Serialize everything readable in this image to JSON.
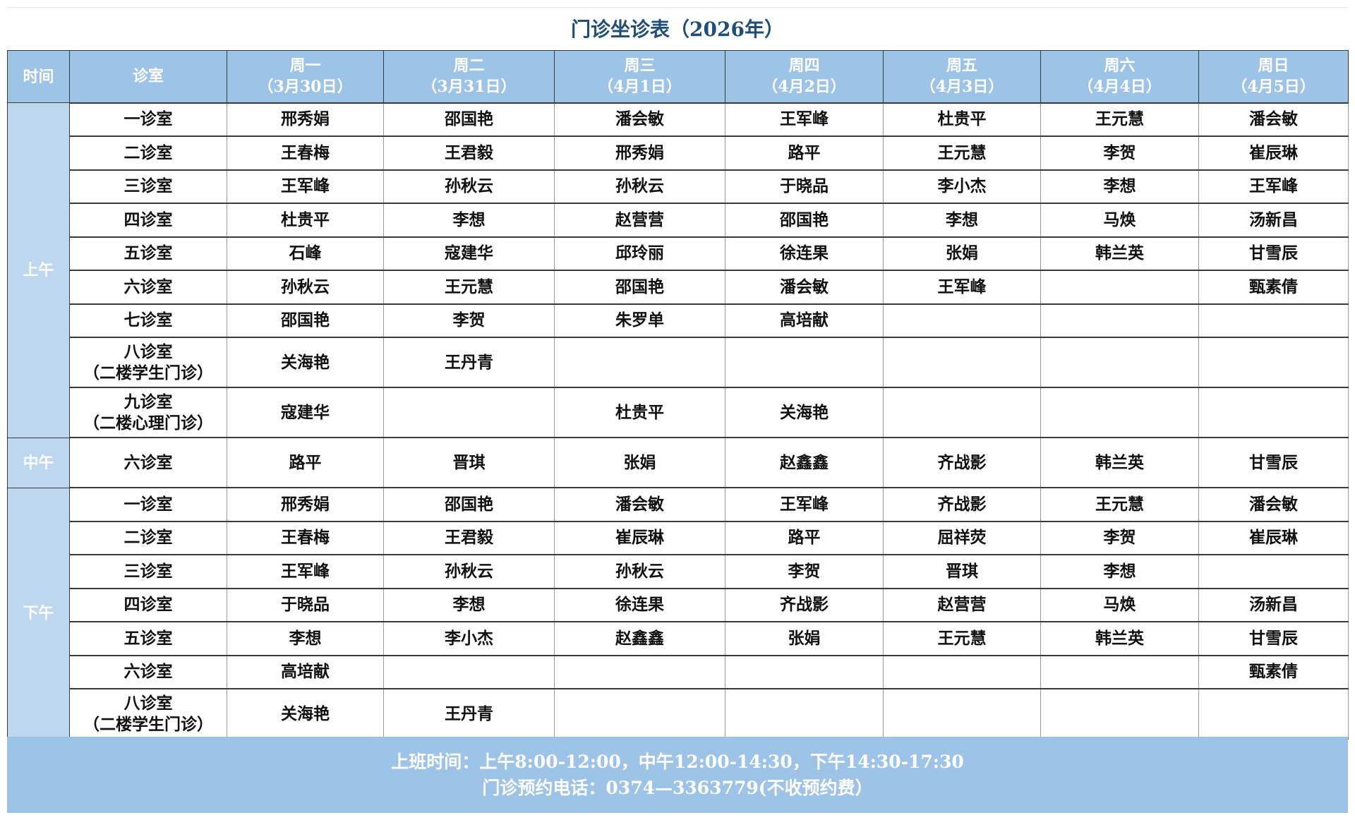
{
  "title": "门诊坐诊表（2026年）",
  "header": {
    "time": "时间",
    "room": "诊室",
    "days": [
      {
        "day": "周一",
        "date": "（3月30日）"
      },
      {
        "day": "周二",
        "date": "（3月31日）"
      },
      {
        "day": "周三",
        "date": "（4月1日）"
      },
      {
        "day": "周四",
        "date": "（4月2日）"
      },
      {
        "day": "周五",
        "date": "（4月3日）"
      },
      {
        "day": "周六",
        "date": "（4月4日）"
      },
      {
        "day": "周日",
        "date": "（4月5日）"
      }
    ]
  },
  "periods": [
    {
      "label": "上午",
      "rows": [
        {
          "room": [
            "一诊室"
          ],
          "doctors": [
            "邢秀娟",
            "邵国艳",
            "潘会敏",
            "王军峰",
            "杜贵平",
            "王元慧",
            "潘会敏"
          ]
        },
        {
          "room": [
            "二诊室"
          ],
          "doctors": [
            "王春梅",
            "王君毅",
            "邢秀娟",
            "路平",
            "王元慧",
            "李贺",
            "崔辰琳"
          ]
        },
        {
          "room": [
            "三诊室"
          ],
          "doctors": [
            "王军峰",
            "孙秋云",
            "孙秋云",
            "于晓品",
            "李小杰",
            "李想",
            "王军峰"
          ]
        },
        {
          "room": [
            "四诊室"
          ],
          "doctors": [
            "杜贵平",
            "李想",
            "赵营营",
            "邵国艳",
            "李想",
            "马焕",
            "汤新昌"
          ]
        },
        {
          "room": [
            "五诊室"
          ],
          "doctors": [
            "石峰",
            "寇建华",
            "邱玲丽",
            "徐连果",
            "张娟",
            "韩兰英",
            "甘雪辰"
          ]
        },
        {
          "room": [
            "六诊室"
          ],
          "doctors": [
            "孙秋云",
            "王元慧",
            "邵国艳",
            "潘会敏",
            "王军峰",
            "",
            "甄素倩"
          ]
        },
        {
          "room": [
            "七诊室"
          ],
          "doctors": [
            "邵国艳",
            "李贺",
            "朱罗单",
            "高培献",
            "",
            "",
            ""
          ]
        },
        {
          "room": [
            "八诊室",
            "（二楼学生门诊）"
          ],
          "doctors": [
            "关海艳",
            "王丹青",
            "",
            "",
            "",
            "",
            ""
          ]
        },
        {
          "room": [
            "九诊室",
            "（二楼心理门诊）"
          ],
          "doctors": [
            "寇建华",
            "",
            "杜贵平",
            "关海艳",
            "",
            "",
            ""
          ]
        }
      ]
    },
    {
      "label": "中午",
      "rows": [
        {
          "room": [
            "六诊室"
          ],
          "doctors": [
            "路平",
            "晋琪",
            "张娟",
            "赵鑫鑫",
            "齐战影",
            "韩兰英",
            "甘雪辰"
          ]
        }
      ]
    },
    {
      "label": "下午",
      "rows": [
        {
          "room": [
            "一诊室"
          ],
          "doctors": [
            "邢秀娟",
            "邵国艳",
            "潘会敏",
            "王军峰",
            "齐战影",
            "王元慧",
            "潘会敏"
          ]
        },
        {
          "room": [
            "二诊室"
          ],
          "doctors": [
            "王春梅",
            "王君毅",
            "崔辰琳",
            "路平",
            "屈祥荧",
            "李贺",
            "崔辰琳"
          ]
        },
        {
          "room": [
            "三诊室"
          ],
          "doctors": [
            "王军峰",
            "孙秋云",
            "孙秋云",
            "李贺",
            "晋琪",
            "李想",
            ""
          ]
        },
        {
          "room": [
            "四诊室"
          ],
          "doctors": [
            "于晓品",
            "李想",
            "徐连果",
            "齐战影",
            "赵营营",
            "马焕",
            "汤新昌"
          ]
        },
        {
          "room": [
            "五诊室"
          ],
          "doctors": [
            "李想",
            "李小杰",
            "赵鑫鑫",
            "张娟",
            "王元慧",
            "韩兰英",
            "甘雪辰"
          ]
        },
        {
          "room": [
            "六诊室"
          ],
          "doctors": [
            "高培献",
            "",
            "",
            "",
            "",
            "",
            "甄素倩"
          ]
        },
        {
          "room": [
            "八诊室",
            "（二楼学生门诊）"
          ],
          "doctors": [
            "关海艳",
            "王丹青",
            "",
            "",
            "",
            "",
            ""
          ]
        }
      ]
    }
  ],
  "footer": {
    "hours": "上班时间：上午8:00-12:00，中午12:00-14:30，下午14:30-17:30",
    "phone": "门诊预约电话：0374—3363779(不收预约费）"
  },
  "colors": {
    "header_bg": "#9dc3e6",
    "period_bg": "#bdd7ee",
    "title": "#1f4e79"
  }
}
